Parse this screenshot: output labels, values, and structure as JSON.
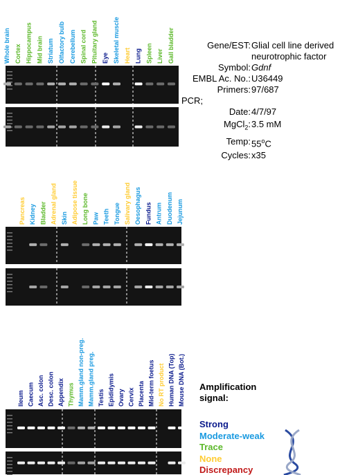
{
  "panels": [
    {
      "lanes": [
        {
          "label": "Whole brain",
          "color": "#1a9ae0"
        },
        {
          "label": "Cortex",
          "color": "#5cb82a"
        },
        {
          "label": "Hippocampus",
          "color": "#5cb82a"
        },
        {
          "label": "Mid brain",
          "color": "#5cb82a"
        },
        {
          "label": "Striatum",
          "color": "#1a9ae0"
        },
        {
          "label": "Olfactory bulb",
          "color": "#1a9ae0"
        },
        {
          "label": "Cerebellum",
          "color": "#1a9ae0"
        },
        {
          "label": "Spinal cord",
          "color": "#5cb82a"
        },
        {
          "label": "Pituitary gland",
          "color": "#5cb82a"
        },
        {
          "label": "Eye",
          "color": "#0a1a8c"
        },
        {
          "label": "Skeletal muscle",
          "color": "#1a9ae0"
        },
        {
          "label": "Heart",
          "color": "#ffcc33"
        },
        {
          "label": "Lung",
          "color": "#0a1a8c"
        },
        {
          "label": "Spleen",
          "color": "#5cb82a"
        },
        {
          "label": "Liver",
          "color": "#5cb82a"
        },
        {
          "label": "Gall bladder",
          "color": "#5cb82a"
        }
      ]
    },
    {
      "lanes": [
        {
          "label": "Pancreas",
          "color": "#ffcc33"
        },
        {
          "label": "Kidney",
          "color": "#1a9ae0"
        },
        {
          "label": "Bladder",
          "color": "#5cb82a"
        },
        {
          "label": "Adrenal gland",
          "color": "#ffcc33"
        },
        {
          "label": "Skin",
          "color": "#1a9ae0"
        },
        {
          "label": "Adipose tissue",
          "color": "#ffcc33"
        },
        {
          "label": "Long bone",
          "color": "#5cb82a"
        },
        {
          "label": "Paw",
          "color": "#1a9ae0"
        },
        {
          "label": "Teeth",
          "color": "#1a9ae0"
        },
        {
          "label": "Tongue",
          "color": "#1a9ae0"
        },
        {
          "label": "Salivary gland",
          "color": "#ffcc33"
        },
        {
          "label": "Oesophagus",
          "color": "#1a9ae0"
        },
        {
          "label": "Fundus",
          "color": "#0a1a8c"
        },
        {
          "label": "Antrum",
          "color": "#1a9ae0"
        },
        {
          "label": "Duodenum",
          "color": "#1a9ae0"
        },
        {
          "label": "Jejunum",
          "color": "#1a9ae0"
        }
      ]
    },
    {
      "lanes": [
        {
          "label": "Ileum",
          "color": "#0a1a8c"
        },
        {
          "label": "Caecum",
          "color": "#0a1a8c"
        },
        {
          "label": "Asc. colon",
          "color": "#0a1a8c"
        },
        {
          "label": "Desc. colon",
          "color": "#0a1a8c"
        },
        {
          "label": "Appendix",
          "color": "#0a1a8c"
        },
        {
          "label": "Thymus",
          "color": "#5cb82a"
        },
        {
          "label": "Mamm.gland non-preg.",
          "color": "#1a9ae0"
        },
        {
          "label": "Mamm.gland preg.",
          "color": "#1a9ae0"
        },
        {
          "label": "Testis",
          "color": "#0a1a8c"
        },
        {
          "label": "Epididymis",
          "color": "#0a1a8c"
        },
        {
          "label": "Ovary",
          "color": "#0a1a8c"
        },
        {
          "label": "Cervix",
          "color": "#0a1a8c"
        },
        {
          "label": "Placenta",
          "color": "#0a1a8c"
        },
        {
          "label": "Mid-term foetus",
          "color": "#0a1a8c"
        },
        {
          "label": "No RT product",
          "color": "#ffcc33"
        },
        {
          "label": "Human DNA (Top)",
          "color": "#0a1a8c"
        },
        {
          "label": "Mouse DNA (Bot.)",
          "color": "#0a1a8c"
        }
      ]
    }
  ],
  "info": {
    "gene_label": "Gene/EST:",
    "gene_value": "Glial cell line derived neurotrophic factor",
    "symbol_label": "Symbol:",
    "symbol_value": "Gdnf",
    "embl_label": "EMBL Ac. No.:",
    "embl_value": "U36449",
    "primers_label": "Primers:",
    "primers_value": "97/687",
    "pcr": "PCR;",
    "date_label": "Date:",
    "date_value": "4/7/97",
    "mgcl_label": "MgCl",
    "mgcl_sub": "2",
    "mgcl_colon": ":",
    "mgcl_value": "3.5 mM",
    "temp_label": "Temp:",
    "temp_value": "55",
    "temp_sup": "o",
    "temp_unit": "C",
    "cycles_label": "Cycles:",
    "cycles_value": "x35"
  },
  "legend": {
    "title": "Amplification signal:",
    "items": [
      {
        "label": "Strong",
        "color": "#0a1a8c"
      },
      {
        "label": "Moderate-weak",
        "color": "#1a9ae0"
      },
      {
        "label": "Trace",
        "color": "#5cb82a"
      },
      {
        "label": "None",
        "color": "#ffcc33"
      },
      {
        "label": "Discrepancy",
        "color": "#c01818"
      }
    ]
  }
}
